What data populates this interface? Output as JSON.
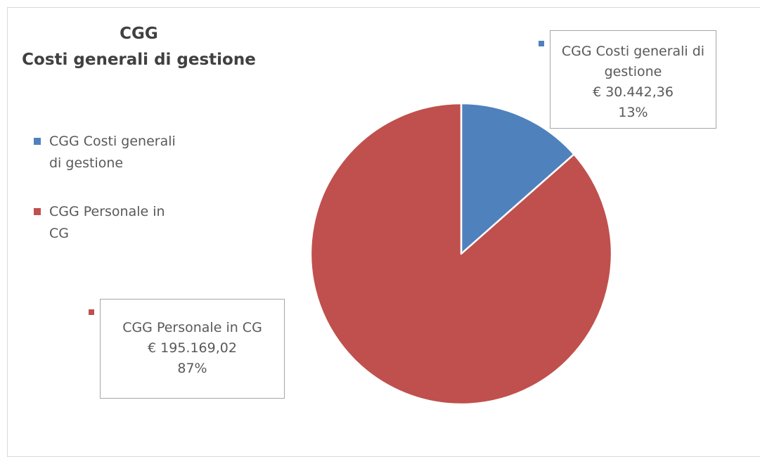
{
  "chart_data": {
    "type": "pie",
    "title": "CGG",
    "subtitle": "Costi generali di gestione",
    "legend_position": "left",
    "slices": [
      {
        "name": "CGG Costi generali di gestione",
        "value": 30442.36,
        "value_label": "€ 30.442,36",
        "percent_label": "13%",
        "color": "#4f81bd"
      },
      {
        "name": "CGG Personale in CG",
        "value": 195169.02,
        "value_label": "€ 195.169,02",
        "percent_label": "87%",
        "color": "#c0504d"
      }
    ],
    "legend": [
      {
        "line1": "CGG Costi generali",
        "line2": "di gestione"
      },
      {
        "line1": "CGG Personale in",
        "line2": "CG"
      }
    ],
    "callouts": [
      {
        "line1": "CGG Costi generali di",
        "line2": "gestione",
        "value": "€ 30.442,36",
        "percent": "13%"
      },
      {
        "line1": "CGG Personale in CG",
        "value": "€ 195.169,02",
        "percent": "87%"
      }
    ]
  }
}
